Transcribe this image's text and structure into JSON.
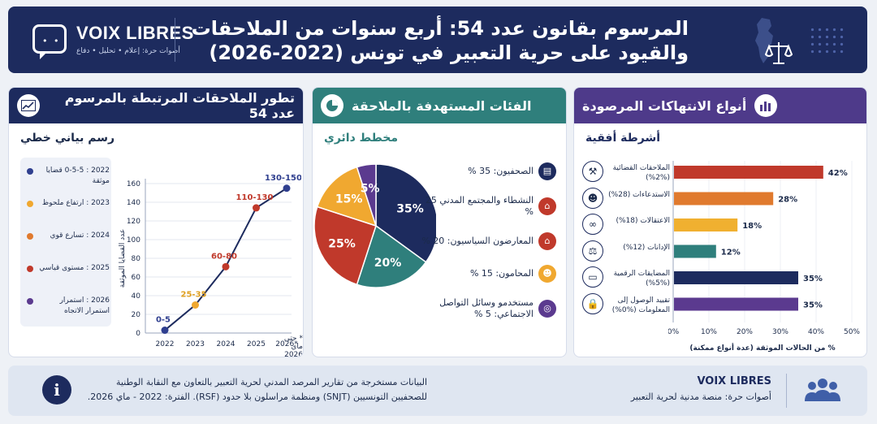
{
  "header": {
    "brand": "VOIX LIBRES",
    "brand_sub": "أصوات حرة: إعلام • تحليل • دفاع",
    "title_line1": "المرسوم بقانون عدد 54: أربع سنوات من الملاحقات",
    "title_line2": "والقيود على حرية التعبير في تونس (2022-2026)"
  },
  "left_panel": {
    "title": "تطور الملاحقات المرتبطة بالمرسوم عدد 54",
    "subtitle": "رسم بياني خطي",
    "legend": [
      {
        "text": "2022 : 0-5-5 قضايا موثقة",
        "color": "#2f3f8f"
      },
      {
        "text": "2023 : ارتفاع ملحوظ",
        "color": "#f0a830"
      },
      {
        "text": "2024 : تسارع قوي",
        "color": "#e07a2e"
      },
      {
        "text": "2025 : مستوى قياسي",
        "color": "#c0392b"
      },
      {
        "text": "2026 : استمرار استمرار الاتجاه",
        "color": "#5b3a8f"
      }
    ],
    "footnote": "* حتى ماي 2026"
  },
  "mid_panel": {
    "title": "الفئات المستهدفة بالملاحقة",
    "subtitle": "مخطط دائري",
    "categories": [
      {
        "label": "الصحفيون: 35 %",
        "color": "#1d2b5e",
        "icon": "newspaper-icon",
        "glyph": "▤"
      },
      {
        "label": "النشطاء والمجتمع المدني 25 %",
        "color": "#c0392b",
        "icon": "institution-icon",
        "glyph": "⌂"
      },
      {
        "label": "المعارضون السياسيون: 20 %",
        "color": "#c0392b",
        "icon": "building-icon",
        "glyph": "⌂"
      },
      {
        "label": "المحامون: 15 %",
        "color": "#f0a830",
        "icon": "lawyers-icon",
        "glyph": "☻"
      },
      {
        "label": "مستخدمو وسائل التواصل الاجتماعي: 5 %",
        "color": "#5b3a8f",
        "icon": "globe-icon",
        "glyph": "◎"
      }
    ]
  },
  "right_panel": {
    "title": "أنواع الانتهاكات المرصودة",
    "subtitle": "أشرطة أفقية"
  },
  "footer": {
    "text_line1": "البيانات مستخرجة من تقارير المرصد المدني لحرية التعبير بالتعاون مع النقابة الوطنية",
    "text_line2": "للصحفيين التونسيين (SNJT) ومنظمة مراسلون بلا حدود (RSF). الفترة: 2022 - ماي 2026.",
    "brand": "VOIX LIBRES",
    "brand_sub": "أصوات حرة: منصة مدنية لحرية التعبير"
  },
  "chart_data": [
    {
      "type": "line",
      "title": "تطور الملاحقات المرتبطة بالمرسوم عدد 54",
      "x": [
        "2022",
        "2023",
        "2024",
        "2025",
        "2026*"
      ],
      "values": [
        3,
        30,
        71,
        134,
        155
      ],
      "point_labels": [
        "0-5",
        "25-35",
        "60-80",
        "110-130",
        "130-150"
      ],
      "point_colors": [
        "#2f3f8f",
        "#f0a830",
        "#c0392b",
        "#c0392b",
        "#2f3f8f"
      ],
      "label_colors": [
        "#2f3f8f",
        "#e0a020",
        "#c0392b",
        "#c0392b",
        "#2f3f8f"
      ],
      "ylabel": "عدد القضايا الموثقة",
      "ylim": [
        0,
        160
      ],
      "yticks": [
        0,
        20,
        40,
        60,
        80,
        100,
        120,
        140,
        160
      ],
      "grid": true
    },
    {
      "type": "pie",
      "title": "الفئات المستهدفة بالملاحقة",
      "values": [
        35,
        20,
        25,
        15,
        5
      ],
      "labels": [
        "35%",
        "20%",
        "25%",
        "15%",
        "5%"
      ],
      "colors": [
        "#1d2b5e",
        "#2f7f7c",
        "#c0392b",
        "#f0a830",
        "#5b3a8f"
      ]
    },
    {
      "type": "bar",
      "orientation": "horizontal",
      "title": "أنواع الانتهاكات المرصودة",
      "categories": [
        "الملاحقات القضائية (%2%)",
        "الاستدعاءات (28%)",
        "الاعتقالات (18%)",
        "الإدانات (12%)",
        "المضايقات الرقمية (%5%)",
        "تقييد الوصول إلى المعلومات (%0%)"
      ],
      "values": [
        42,
        28,
        18,
        12,
        35,
        35
      ],
      "value_labels": [
        "42%",
        "28%",
        "18%",
        "12%",
        "35%",
        "35%"
      ],
      "colors": [
        "#c0392b",
        "#e07a2e",
        "#f0b030",
        "#2f7f7c",
        "#1d2b5e",
        "#5b3a8f"
      ],
      "icons": [
        "gavel-icon",
        "group-icon",
        "handcuffs-icon",
        "scale-icon",
        "monitor-icon",
        "lock-icon"
      ],
      "icon_glyphs": [
        "⚒",
        "☻",
        "∞",
        "⚖",
        "▭",
        "🔒"
      ],
      "xlim": [
        0,
        50
      ],
      "xticks": [
        "0%",
        "10%",
        "20%",
        "30%",
        "40%",
        "50%"
      ],
      "xlabel": "% من الحالات الموثقة (عدة أنواع ممكنة)"
    }
  ]
}
